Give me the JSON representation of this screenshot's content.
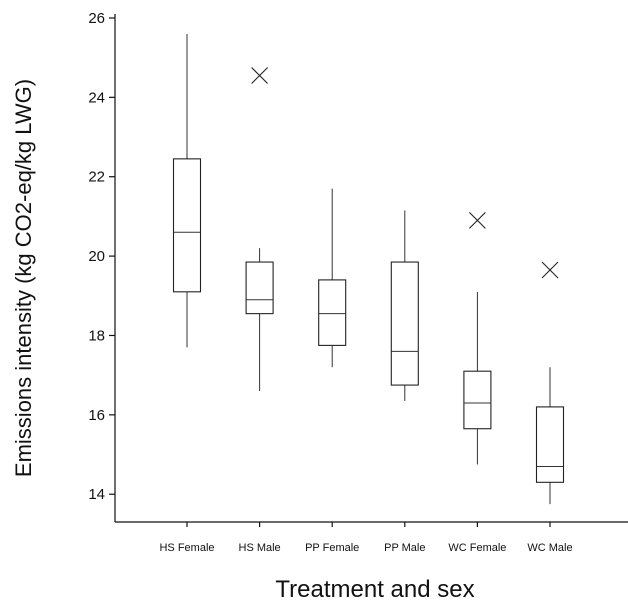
{
  "chart_data": {
    "type": "box",
    "title": "",
    "xlabel": "Treatment and sex",
    "ylabel": "Emissions intensity (kg CO2-eq/kg LWG)",
    "ylim": [
      13.3,
      26.1
    ],
    "yticks": [
      14,
      16,
      18,
      20,
      22,
      24,
      26
    ],
    "grid": false,
    "categories": [
      "HS Female",
      "HS Male",
      "PP Female",
      "PP Male",
      "WC Female",
      "WC Male"
    ],
    "boxes": [
      {
        "category": "HS Female",
        "whisker_low": 17.7,
        "q1": 19.1,
        "median": 20.6,
        "q3": 22.45,
        "whisker_high": 25.6,
        "outliers": []
      },
      {
        "category": "HS Male",
        "whisker_low": 16.6,
        "q1": 18.55,
        "median": 18.9,
        "q3": 19.85,
        "whisker_high": 20.2,
        "outliers": [
          24.55
        ]
      },
      {
        "category": "PP Female",
        "whisker_low": 17.2,
        "q1": 17.75,
        "median": 18.55,
        "q3": 19.4,
        "whisker_high": 21.7,
        "outliers": []
      },
      {
        "category": "PP Male",
        "whisker_low": 16.35,
        "q1": 16.75,
        "median": 17.6,
        "q3": 19.85,
        "whisker_high": 21.15,
        "outliers": []
      },
      {
        "category": "WC Female",
        "whisker_low": 14.75,
        "q1": 15.65,
        "median": 16.3,
        "q3": 17.1,
        "whisker_high": 19.1,
        "outliers": [
          20.9
        ]
      },
      {
        "category": "WC Male",
        "whisker_low": 13.75,
        "q1": 14.3,
        "median": 14.7,
        "q3": 16.2,
        "whisker_high": 17.2,
        "outliers": [
          19.65
        ]
      }
    ]
  }
}
